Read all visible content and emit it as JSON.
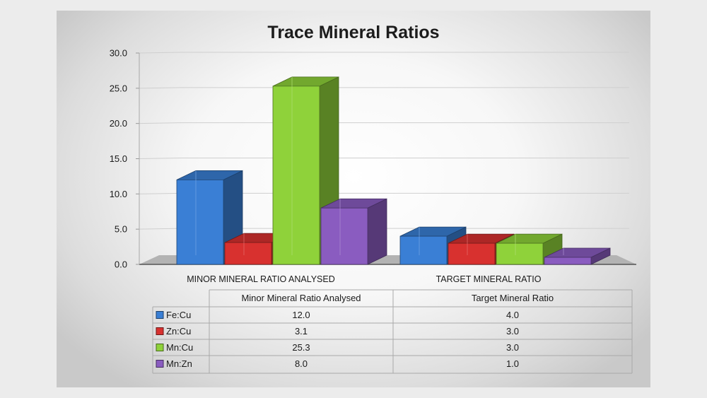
{
  "chart_data": {
    "type": "bar",
    "title": "Trace Mineral Ratios",
    "categories": [
      "MINOR MINERAL RATIO ANALYSED",
      "TARGET MINERAL RATIO"
    ],
    "table_headers": [
      "Minor Mineral Ratio Analysed",
      "Target Mineral Ratio"
    ],
    "series": [
      {
        "name": "Fe:Cu",
        "values": [
          12.0,
          4.0
        ],
        "display": [
          "12.0",
          "4.0"
        ],
        "color": "#3a7fd5"
      },
      {
        "name": "Zn:Cu",
        "values": [
          3.1,
          3.0
        ],
        "display": [
          "3.1",
          "3.0"
        ],
        "color": "#d8312f"
      },
      {
        "name": "Mn:Cu",
        "values": [
          25.3,
          3.0
        ],
        "display": [
          "25.3",
          "3.0"
        ],
        "color": "#8fd23a"
      },
      {
        "name": "Mn:Zn",
        "values": [
          8.0,
          1.0
        ],
        "display": [
          "8.0",
          "1.0"
        ],
        "color": "#8a5cc0"
      }
    ],
    "ylim": [
      0,
      30
    ],
    "yticks": [
      "0.0",
      "5.0",
      "10.0",
      "15.0",
      "20.0",
      "25.0",
      "30.0"
    ],
    "grid": true,
    "legend": "data table"
  }
}
